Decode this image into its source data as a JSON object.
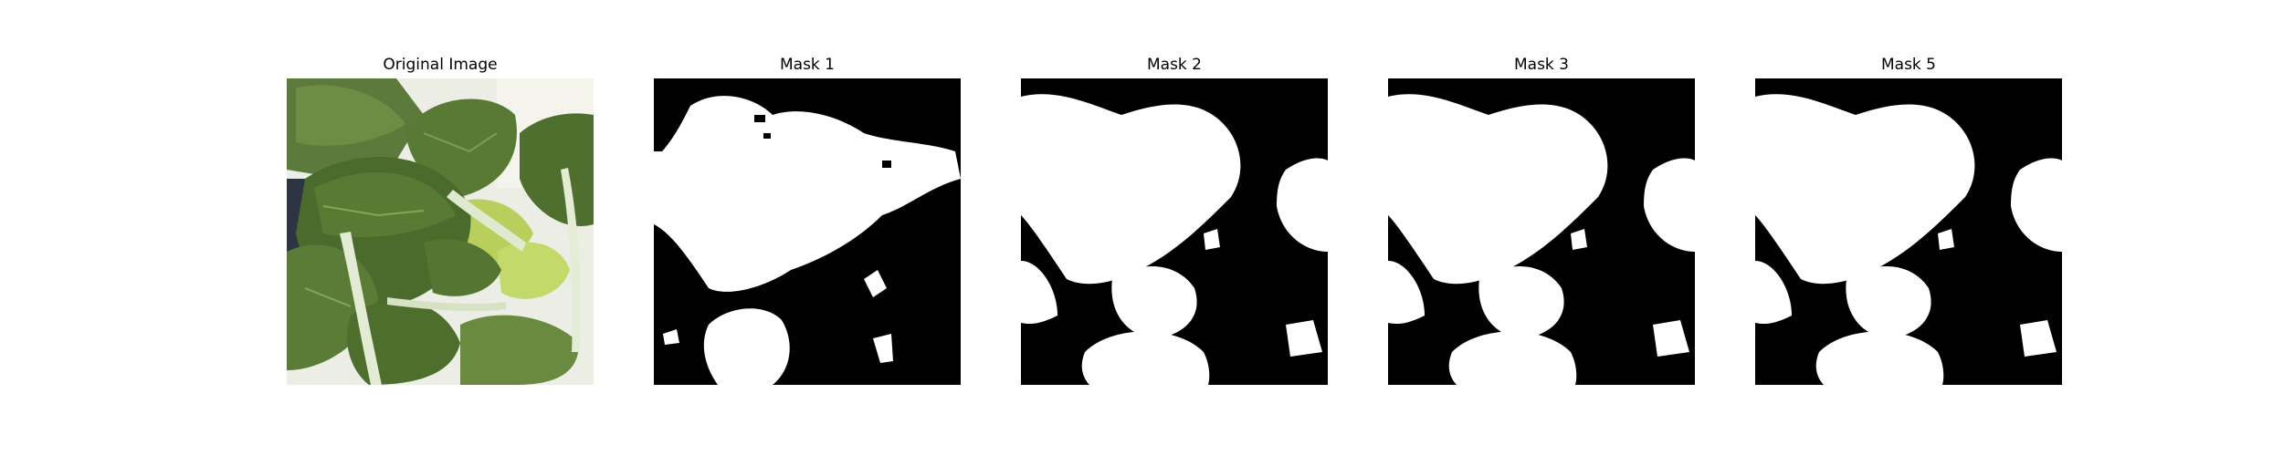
{
  "figure": {
    "panels": [
      {
        "title": "Original Image",
        "kind": "photo-bok-choy-leaves"
      },
      {
        "title": "Mask 1",
        "kind": "binary-mask"
      },
      {
        "title": "Mask 2",
        "kind": "binary-mask"
      },
      {
        "title": "Mask 3",
        "kind": "binary-mask"
      },
      {
        "title": "Mask 5",
        "kind": "binary-mask"
      }
    ]
  },
  "colors": {
    "background": "#ffffff",
    "mask_foreground": "#ffffff",
    "mask_background": "#000000",
    "leaf_dark": "#3f5e2a",
    "leaf_mid": "#5f7f3c",
    "leaf_light": "#a9c45e",
    "stem": "#dfe9cf",
    "photo_backdrop": "#eef0ea"
  }
}
